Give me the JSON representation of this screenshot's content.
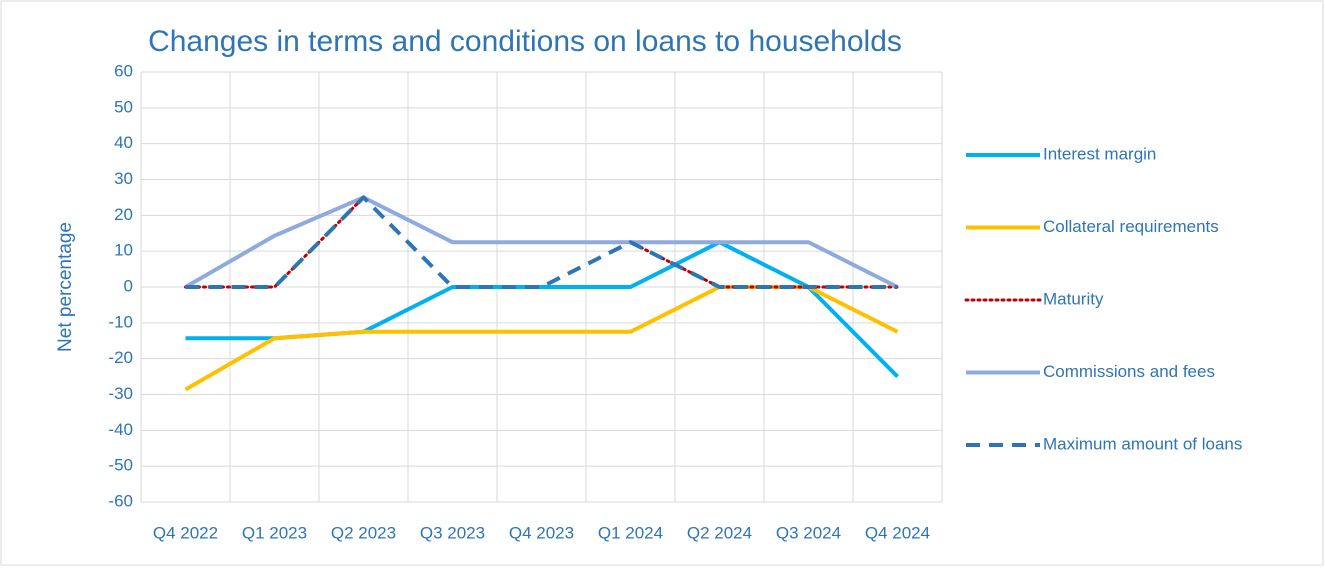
{
  "chart_data": {
    "type": "line",
    "title": "Changes in terms and conditions on loans to households",
    "y_label": "Net percentage",
    "categories": [
      "Q4 2022",
      "Q1 2023",
      "Q2 2023",
      "Q3 2023",
      "Q4 2023",
      "Q1 2024",
      "Q2 2024",
      "Q3 2024",
      "Q4 2024"
    ],
    "series": [
      {
        "name": "Interest margin",
        "color": "#00b0f0",
        "dash": "solid",
        "values": [
          -14.3,
          -14.3,
          -12.5,
          0,
          0,
          0,
          12.5,
          0,
          -25
        ]
      },
      {
        "name": "Collateral requirements",
        "color": "#ffc000",
        "dash": "solid",
        "values": [
          -28.6,
          -14.3,
          -12.5,
          -12.5,
          -12.5,
          -12.5,
          0,
          0,
          -12.5
        ]
      },
      {
        "name": "Maturity",
        "color": "#c00000",
        "dash": "dotted",
        "values": [
          0,
          0,
          25,
          12.5,
          12.5,
          12.5,
          0,
          0,
          0
        ]
      },
      {
        "name": "Commissions and fees",
        "color": "#8faadc",
        "dash": "solid",
        "values": [
          0,
          14.3,
          25,
          12.5,
          12.5,
          12.5,
          12.5,
          12.5,
          0
        ]
      },
      {
        "name": "Maximum amount of loans",
        "color": "#2e75b6",
        "dash": "dashed",
        "values": [
          0,
          0,
          25,
          0,
          0,
          12.5,
          0,
          0,
          0
        ]
      }
    ],
    "ylim": [
      -60,
      60
    ],
    "yticks": [
      -60,
      -50,
      -40,
      -30,
      -20,
      -10,
      0,
      10,
      20,
      30,
      40,
      50,
      60
    ],
    "grid": true,
    "legend": "right"
  }
}
